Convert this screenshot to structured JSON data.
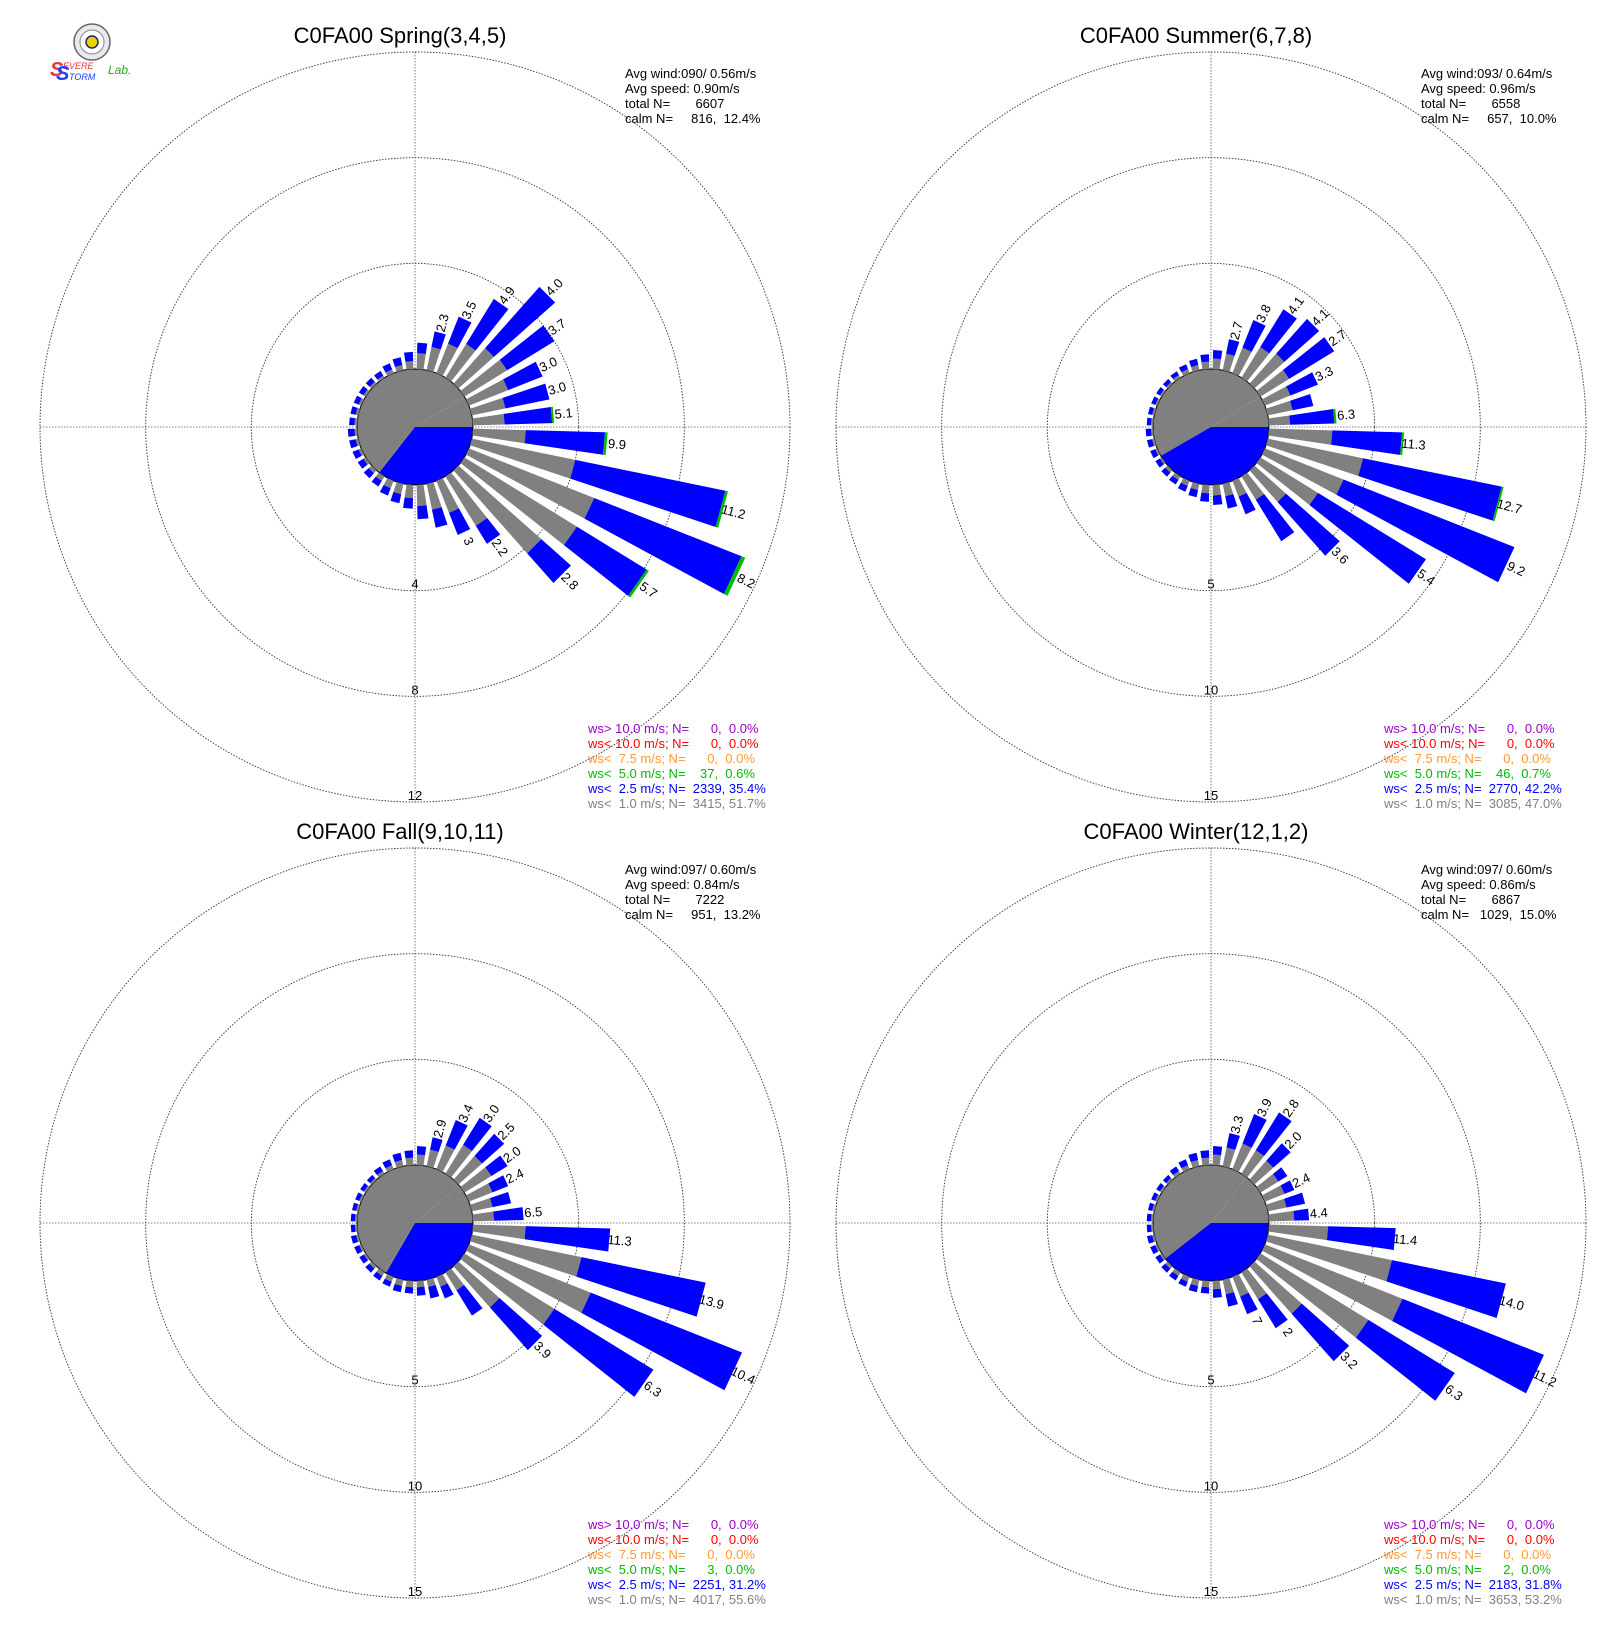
{
  "logo": {
    "text_s1": "S",
    "text_evere": "EVERE",
    "text_s2": "S",
    "text_torm": "TORM",
    "text_lab": "Lab."
  },
  "colors": {
    "gt10": "#9900cc",
    "lt10": "#ff0000",
    "lt75": "#ff9933",
    "lt5": "#00bb00",
    "lt25": "#0000ff",
    "lt1": "#808080"
  },
  "chart_data": [
    {
      "type": "wind-rose",
      "title": "C0FA00 Spring(3,4,5)",
      "stats": [
        "Avg wind:090/ 0.56m/s",
        "Avg speed: 0.90m/s",
        "total N=       6607",
        "calm N=     816,  12.4%"
      ],
      "legend": [
        {
          "text": "ws> 10.0 m/s; N=      0,  0.0%",
          "color": "#9900cc"
        },
        {
          "text": "ws< 10.0 m/s; N=      0,  0.0%",
          "color": "#ff0000"
        },
        {
          "text": "ws<  7.5 m/s; N=      0,  0.0%",
          "color": "#ff9933"
        },
        {
          "text": "ws<  5.0 m/s; N=    37,  0.6%",
          "color": "#00bb00"
        },
        {
          "text": "ws<  2.5 m/s; N=  2339, 35.4%",
          "color": "#0000ff"
        },
        {
          "text": "ws<  1.0 m/s; N=  3415, 51.7%",
          "color": "#808080"
        }
      ],
      "rings": [
        4,
        8,
        12
      ],
      "ring_labels": [
        "4",
        "8",
        "12"
      ],
      "calm": {
        "gray_from_deg": 59,
        "gray_to_deg": 220,
        "blue_from_deg": 90,
        "blue_to_deg": 218
      },
      "directions_deg": [
        5,
        15,
        25,
        35,
        45,
        55,
        65,
        75,
        85,
        95,
        105,
        115,
        125,
        135,
        145,
        155,
        165,
        175,
        185,
        195,
        205,
        215,
        225,
        235,
        245,
        255,
        265,
        275,
        285,
        295,
        305,
        315,
        325,
        335,
        345,
        355
      ],
      "lt1": [
        0.6,
        0.9,
        1.2,
        1.5,
        1.8,
        1.9,
        1.6,
        1.3,
        1.2,
        2.0,
        4.0,
        5.1,
        5.0,
        4.2,
        2.2,
        1.3,
        1.0,
        0.8,
        0.5,
        0.4,
        0.3,
        0.2,
        0.15,
        0.1,
        0.1,
        0.1,
        0.1,
        0.1,
        0.1,
        0.1,
        0.1,
        0.1,
        0.1,
        0.15,
        0.2,
        0.3
      ],
      "lt25": [
        0.4,
        0.6,
        1.1,
        2.0,
        3.1,
        2.1,
        1.4,
        1.7,
        1.8,
        3.0,
        5.8,
        6.0,
        3.1,
        1.5,
        0.8,
        0.9,
        0.7,
        0.5,
        0.4,
        0.35,
        0.3,
        0.25,
        0.25,
        0.25,
        0.25,
        0.25,
        0.25,
        0.2,
        0.2,
        0.2,
        0.2,
        0.2,
        0.2,
        0.25,
        0.3,
        0.35
      ],
      "lt5": [
        0,
        0,
        0,
        0,
        0,
        0,
        0,
        0,
        0.05,
        0.1,
        0.1,
        0.15,
        0.1,
        0,
        0,
        0,
        0,
        0,
        0,
        0,
        0,
        0,
        0,
        0,
        0,
        0,
        0,
        0,
        0,
        0,
        0,
        0,
        0,
        0,
        0,
        0
      ],
      "bar_labels": [
        "",
        "2.3",
        "3.5",
        "4.9",
        "4.0",
        "3.7",
        "3.0",
        "3.0",
        "5.1",
        "9.9",
        "11.2",
        "8.2",
        "5.7",
        "2.8",
        "2.2",
        "3",
        "",
        "",
        "",
        "",
        "",
        "",
        "",
        "",
        "",
        "",
        "",
        "",
        "",
        "",
        "",
        "",
        "",
        "",
        "",
        ""
      ]
    },
    {
      "type": "wind-rose",
      "title": "C0FA00 Summer(6,7,8)",
      "stats": [
        "Avg wind:093/ 0.64m/s",
        "Avg speed: 0.96m/s",
        "total N=       6558",
        "calm N=     657,  10.0%"
      ],
      "legend": [
        {
          "text": "ws> 10.0 m/s; N=      0,  0.0%",
          "color": "#9900cc"
        },
        {
          "text": "ws< 10.0 m/s; N=      0,  0.0%",
          "color": "#ff0000"
        },
        {
          "text": "ws<  7.5 m/s; N=      0,  0.0%",
          "color": "#ff9933"
        },
        {
          "text": "ws<  5.0 m/s; N=    46,  0.7%",
          "color": "#00bb00"
        },
        {
          "text": "ws<  2.5 m/s; N=  2770, 42.2%",
          "color": "#0000ff"
        },
        {
          "text": "ws<  1.0 m/s; N=  3085, 47.0%",
          "color": "#808080"
        }
      ],
      "rings": [
        5,
        10,
        15
      ],
      "ring_labels": [
        "5",
        "10",
        "15"
      ],
      "calm": {
        "gray_from_deg": 58,
        "gray_to_deg": 240,
        "blue_from_deg": 90,
        "blue_to_deg": 240
      },
      "directions_deg": [
        5,
        15,
        25,
        35,
        45,
        55,
        65,
        75,
        85,
        95,
        105,
        115,
        125,
        135,
        145,
        155,
        165,
        175,
        185,
        195,
        205,
        215,
        225,
        235,
        245,
        255,
        265,
        275,
        285,
        295,
        305,
        315,
        325,
        335,
        345,
        355
      ],
      "lt1": [
        0.5,
        0.8,
        1.3,
        1.7,
        1.9,
        1.6,
        1.3,
        1.2,
        1.0,
        3.0,
        4.6,
        4.0,
        3.2,
        2.0,
        1.3,
        0.8,
        0.6,
        0.5,
        0.4,
        0.3,
        0.25,
        0.2,
        0.15,
        0.1,
        0.1,
        0.1,
        0.1,
        0.1,
        0.1,
        0.1,
        0.1,
        0.1,
        0.15,
        0.2,
        0.25,
        0.35
      ],
      "lt25": [
        0.4,
        0.7,
        1.4,
        2.1,
        2.2,
        2.5,
        1.4,
        1.0,
        2.1,
        3.3,
        6.7,
        8.7,
        6.0,
        3.4,
        2.3,
        0.9,
        0.6,
        0.45,
        0.4,
        0.35,
        0.3,
        0.25,
        0.25,
        0.25,
        0.25,
        0.25,
        0.25,
        0.2,
        0.2,
        0.2,
        0.2,
        0.2,
        0.2,
        0.25,
        0.3,
        0.35
      ],
      "lt5": [
        0,
        0,
        0,
        0,
        0,
        0,
        0,
        0,
        0.1,
        0.1,
        0.05,
        0,
        0,
        0,
        0,
        0,
        0,
        0,
        0,
        0,
        0,
        0,
        0,
        0,
        0,
        0,
        0,
        0,
        0,
        0,
        0,
        0,
        0,
        0,
        0,
        0
      ],
      "bar_labels": [
        "",
        "2.7",
        "3.8",
        "4.1",
        "4.1",
        "2.7",
        "3.3",
        "",
        "6.3",
        "11.3",
        "12.7",
        "9.2",
        "5.4",
        "3.6",
        "",
        "",
        "",
        "",
        "",
        "",
        "",
        "",
        "",
        "",
        "",
        "",
        "",
        "",
        "",
        "",
        "",
        "",
        "",
        "",
        "",
        ""
      ]
    },
    {
      "type": "wind-rose",
      "title": "C0FA00 Fall(9,10,11)",
      "stats": [
        "Avg wind:097/ 0.60m/s",
        "Avg speed: 0.84m/s",
        "total N=       7222",
        "calm N=     951,  13.2%"
      ],
      "legend": [
        {
          "text": "ws> 10.0 m/s; N=      0,  0.0%",
          "color": "#9900cc"
        },
        {
          "text": "ws< 10.0 m/s; N=      0,  0.0%",
          "color": "#ff0000"
        },
        {
          "text": "ws<  7.5 m/s; N=      0,  0.0%",
          "color": "#ff9933"
        },
        {
          "text": "ws<  5.0 m/s; N=      3,  0.0%",
          "color": "#00bb00"
        },
        {
          "text": "ws<  2.5 m/s; N=  2251, 31.2%",
          "color": "#0000ff"
        },
        {
          "text": "ws<  1.0 m/s; N=  4017, 55.6%",
          "color": "#808080"
        }
      ],
      "rings": [
        5,
        10,
        15
      ],
      "ring_labels": [
        "5",
        "10",
        "15"
      ],
      "calm": {
        "gray_from_deg": 50,
        "gray_to_deg": 212,
        "blue_from_deg": 90,
        "blue_to_deg": 210
      },
      "directions_deg": [
        5,
        15,
        25,
        35,
        45,
        55,
        65,
        75,
        85,
        95,
        105,
        115,
        125,
        135,
        145,
        155,
        165,
        175,
        185,
        195,
        205,
        215,
        225,
        235,
        245,
        255,
        265,
        275,
        285,
        295,
        305,
        315,
        325,
        335,
        345,
        355
      ],
      "lt1": [
        0.5,
        0.8,
        1.2,
        1.6,
        1.5,
        1.5,
        1.2,
        1.0,
        1.0,
        2.5,
        5.3,
        6.2,
        5.0,
        2.6,
        1.0,
        0.5,
        0.35,
        0.3,
        0.3,
        0.3,
        0.25,
        0.2,
        0.15,
        0.1,
        0.1,
        0.1,
        0.1,
        0.1,
        0.1,
        0.1,
        0.1,
        0.1,
        0.15,
        0.2,
        0.3,
        0.35
      ],
      "lt25": [
        0.4,
        0.6,
        1.3,
        1.5,
        1.4,
        0.9,
        0.8,
        0.9,
        1.4,
        4.0,
        6.0,
        7.7,
        5.5,
        2.7,
        1.4,
        0.6,
        0.55,
        0.4,
        0.3,
        0.3,
        0.25,
        0.25,
        0.25,
        0.25,
        0.25,
        0.25,
        0.2,
        0.2,
        0.2,
        0.2,
        0.2,
        0.2,
        0.25,
        0.3,
        0.35,
        0.35
      ],
      "lt5": [
        0,
        0,
        0,
        0,
        0,
        0,
        0,
        0,
        0,
        0,
        0,
        0,
        0,
        0,
        0,
        0,
        0,
        0,
        0,
        0,
        0,
        0,
        0,
        0,
        0,
        0,
        0,
        0,
        0,
        0,
        0,
        0,
        0,
        0,
        0,
        0
      ],
      "bar_labels": [
        "",
        "2.9",
        "3.4",
        "3.0",
        "2.5",
        "2.0",
        "2.4",
        "",
        "6.5",
        "11.3",
        "13.9",
        "10.4",
        "6.3",
        "3.9",
        "",
        "",
        "",
        "",
        "",
        "",
        "",
        "",
        "",
        "",
        "",
        "",
        "",
        "",
        "",
        "",
        "",
        "",
        "",
        "",
        "",
        ""
      ]
    },
    {
      "type": "wind-rose",
      "title": "C0FA00 Winter(12,1,2)",
      "stats": [
        "Avg wind:097/ 0.60m/s",
        "Avg speed: 0.86m/s",
        "total N=       6867",
        "calm N=   1029,  15.0%"
      ],
      "legend": [
        {
          "text": "ws> 10.0 m/s; N=      0,  0.0%",
          "color": "#9900cc"
        },
        {
          "text": "ws< 10.0 m/s; N=      0,  0.0%",
          "color": "#ff0000"
        },
        {
          "text": "ws<  7.5 m/s; N=      0,  0.0%",
          "color": "#ff9933"
        },
        {
          "text": "ws<  5.0 m/s; N=      2,  0.0%",
          "color": "#00bb00"
        },
        {
          "text": "ws<  2.5 m/s; N=  2183, 31.8%",
          "color": "#0000ff"
        },
        {
          "text": "ws<  1.0 m/s; N=  3653, 53.2%",
          "color": "#808080"
        }
      ],
      "rings": [
        5,
        10,
        15
      ],
      "ring_labels": [
        "5",
        "10",
        "15"
      ],
      "calm": {
        "gray_from_deg": 38,
        "gray_to_deg": 232,
        "blue_from_deg": 90,
        "blue_to_deg": 232
      },
      "directions_deg": [
        5,
        15,
        25,
        35,
        45,
        55,
        65,
        75,
        85,
        95,
        105,
        115,
        125,
        135,
        145,
        155,
        165,
        175,
        185,
        195,
        205,
        215,
        225,
        235,
        245,
        255,
        265,
        275,
        285,
        295,
        305,
        315,
        325,
        335,
        345,
        355
      ],
      "lt1": [
        0.5,
        0.9,
        1.3,
        1.3,
        1.2,
        1.0,
        1.0,
        0.9,
        1.2,
        2.8,
        6.0,
        7.0,
        6.0,
        3.0,
        1.5,
        1.0,
        0.7,
        0.4,
        0.3,
        0.3,
        0.25,
        0.2,
        0.15,
        0.1,
        0.1,
        0.1,
        0.1,
        0.1,
        0.1,
        0.1,
        0.1,
        0.1,
        0.15,
        0.2,
        0.3,
        0.35
      ],
      "lt25": [
        0.4,
        0.7,
        1.5,
        2.1,
        1.1,
        0.5,
        0.5,
        0.9,
        0.7,
        3.2,
        5.5,
        7.2,
        4.8,
        3.0,
        1.6,
        0.9,
        0.6,
        0.4,
        0.3,
        0.3,
        0.25,
        0.25,
        0.25,
        0.25,
        0.25,
        0.25,
        0.2,
        0.2,
        0.2,
        0.2,
        0.2,
        0.2,
        0.25,
        0.3,
        0.35,
        0.35
      ],
      "lt5": [
        0,
        0,
        0,
        0,
        0,
        0,
        0,
        0,
        0,
        0,
        0,
        0,
        0,
        0,
        0,
        0,
        0,
        0,
        0,
        0,
        0,
        0,
        0,
        0,
        0,
        0,
        0,
        0,
        0,
        0,
        0,
        0,
        0,
        0,
        0,
        0
      ],
      "bar_labels": [
        "",
        "3.3",
        "3.9",
        "2.8",
        "2.0",
        "",
        "2.4",
        "",
        "4.4",
        "11.4",
        "14.0",
        "11.2",
        "6.3",
        "3.2",
        "2",
        "7",
        "",
        "",
        "",
        "",
        "",
        "",
        "",
        "",
        "",
        "",
        "",
        "",
        "",
        "",
        "",
        "",
        "",
        "",
        "",
        ""
      ]
    }
  ]
}
